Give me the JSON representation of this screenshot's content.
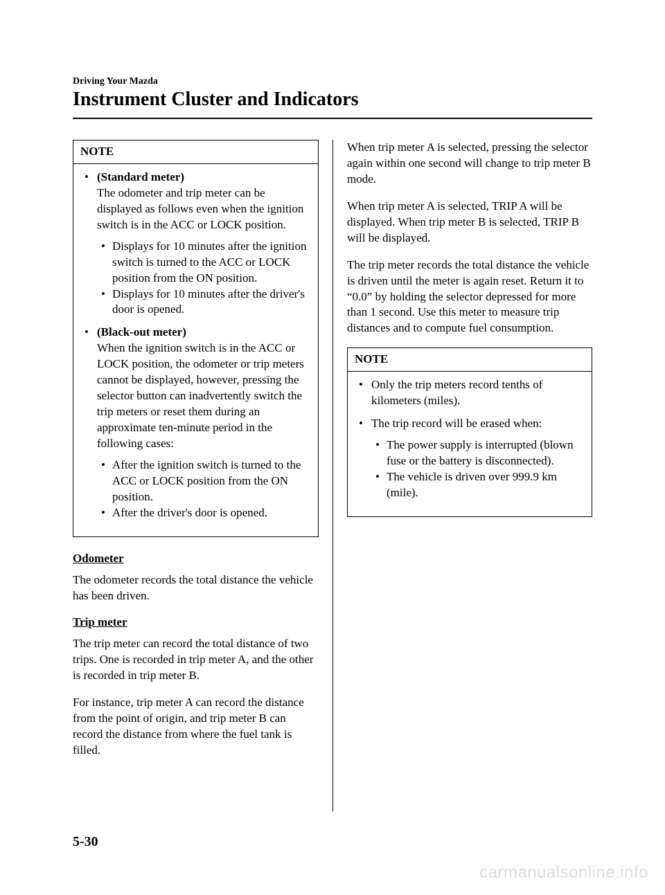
{
  "header": {
    "section": "Driving Your Mazda",
    "title": "Instrument Cluster and Indicators"
  },
  "left": {
    "note1": {
      "label": "NOTE",
      "item1": {
        "title": "(Standard meter)",
        "body": "The odometer and trip meter can be displayed as follows even when the ignition switch is in the ACC or LOCK position.",
        "sub1": "Displays for 10 minutes after the ignition switch is turned to the ACC or LOCK position from the ON position.",
        "sub2": "Displays for 10 minutes after the driver's door is opened."
      },
      "item2": {
        "title": "(Black-out meter)",
        "body": "When the ignition switch is in the ACC or LOCK position, the odometer or trip meters cannot be displayed, however, pressing the selector button can inadvertently switch the trip meters or reset them during an approximate ten-minute period in the following cases:",
        "sub1": "After the ignition switch is turned to the ACC or LOCK position from the ON position.",
        "sub2": "After the driver's door is opened."
      }
    },
    "odometer": {
      "heading": "Odometer",
      "body": "The odometer records the total distance the vehicle has been driven."
    },
    "trip": {
      "heading": "Trip meter",
      "p1": "The trip meter can record the total distance of two trips. One is recorded in trip meter A, and the other is recorded in trip meter B.",
      "p2": "For instance, trip meter A can record the distance from the point of origin, and trip meter B can record the distance from where the fuel tank is filled."
    }
  },
  "right": {
    "p1": "When trip meter A is selected, pressing the selector again within one second will change to trip meter B mode.",
    "p2": "When trip meter A is selected, TRIP A will be displayed. When trip meter B is selected, TRIP B will be displayed.",
    "p3": "The trip meter records the total distance the vehicle is driven until the meter is again reset. Return it to “0.0” by holding the selector depressed for more than 1 second. Use this meter to measure trip distances and to compute fuel consumption.",
    "note2": {
      "label": "NOTE",
      "b1": "Only the trip meters record tenths of kilometers (miles).",
      "b2": "The trip record will be erased when:",
      "s1": "The power supply is interrupted (blown fuse or the battery is disconnected).",
      "s2": "The vehicle is driven over 999.9 km (mile)."
    }
  },
  "footer": {
    "page": "5-30",
    "watermark": "carmanualsonline.info"
  }
}
